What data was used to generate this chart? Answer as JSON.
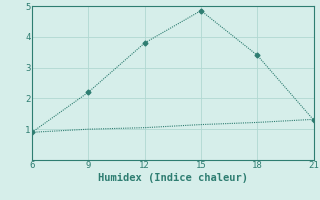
{
  "xlabel": "Humidex (Indice chaleur)",
  "line1_x": [
    6,
    9,
    12,
    15,
    18,
    21
  ],
  "line1_y": [
    0.9,
    2.2,
    3.8,
    4.85,
    3.4,
    1.3
  ],
  "line2_x": [
    6,
    9,
    12,
    15,
    18,
    21
  ],
  "line2_y": [
    0.9,
    1.0,
    1.05,
    1.15,
    1.22,
    1.32
  ],
  "line_color": "#2e7d71",
  "bg_color": "#d6eeea",
  "grid_color": "#b0d8d2",
  "axis_color": "#2e7d71",
  "spine_color": "#2e7d71",
  "xlim": [
    6,
    21
  ],
  "ylim": [
    0,
    5
  ],
  "xticks": [
    6,
    9,
    12,
    15,
    18,
    21
  ],
  "yticks": [
    1,
    2,
    3,
    4,
    5
  ],
  "marker": "D",
  "markersize": 2.5,
  "linewidth": 0.8,
  "font_family": "monospace",
  "xlabel_fontsize": 7.5,
  "tick_fontsize": 6.5
}
